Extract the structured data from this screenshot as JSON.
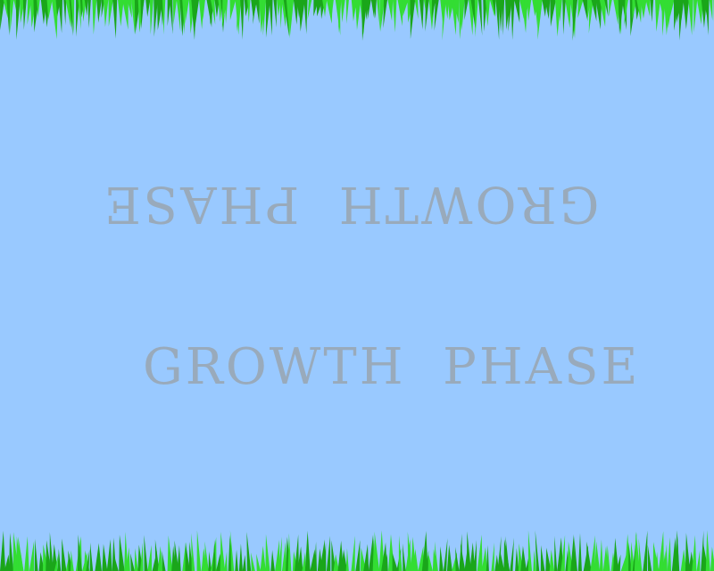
{
  "scene": {
    "phase_label": "GROWTH  PHASE",
    "mirrored_phase_label": "GROWTH  PHASE"
  },
  "colors": {
    "sky": "#99c9ff",
    "text": "#99aabb",
    "grass_dark": "#1aa61a",
    "grass_light": "#33dd33"
  }
}
